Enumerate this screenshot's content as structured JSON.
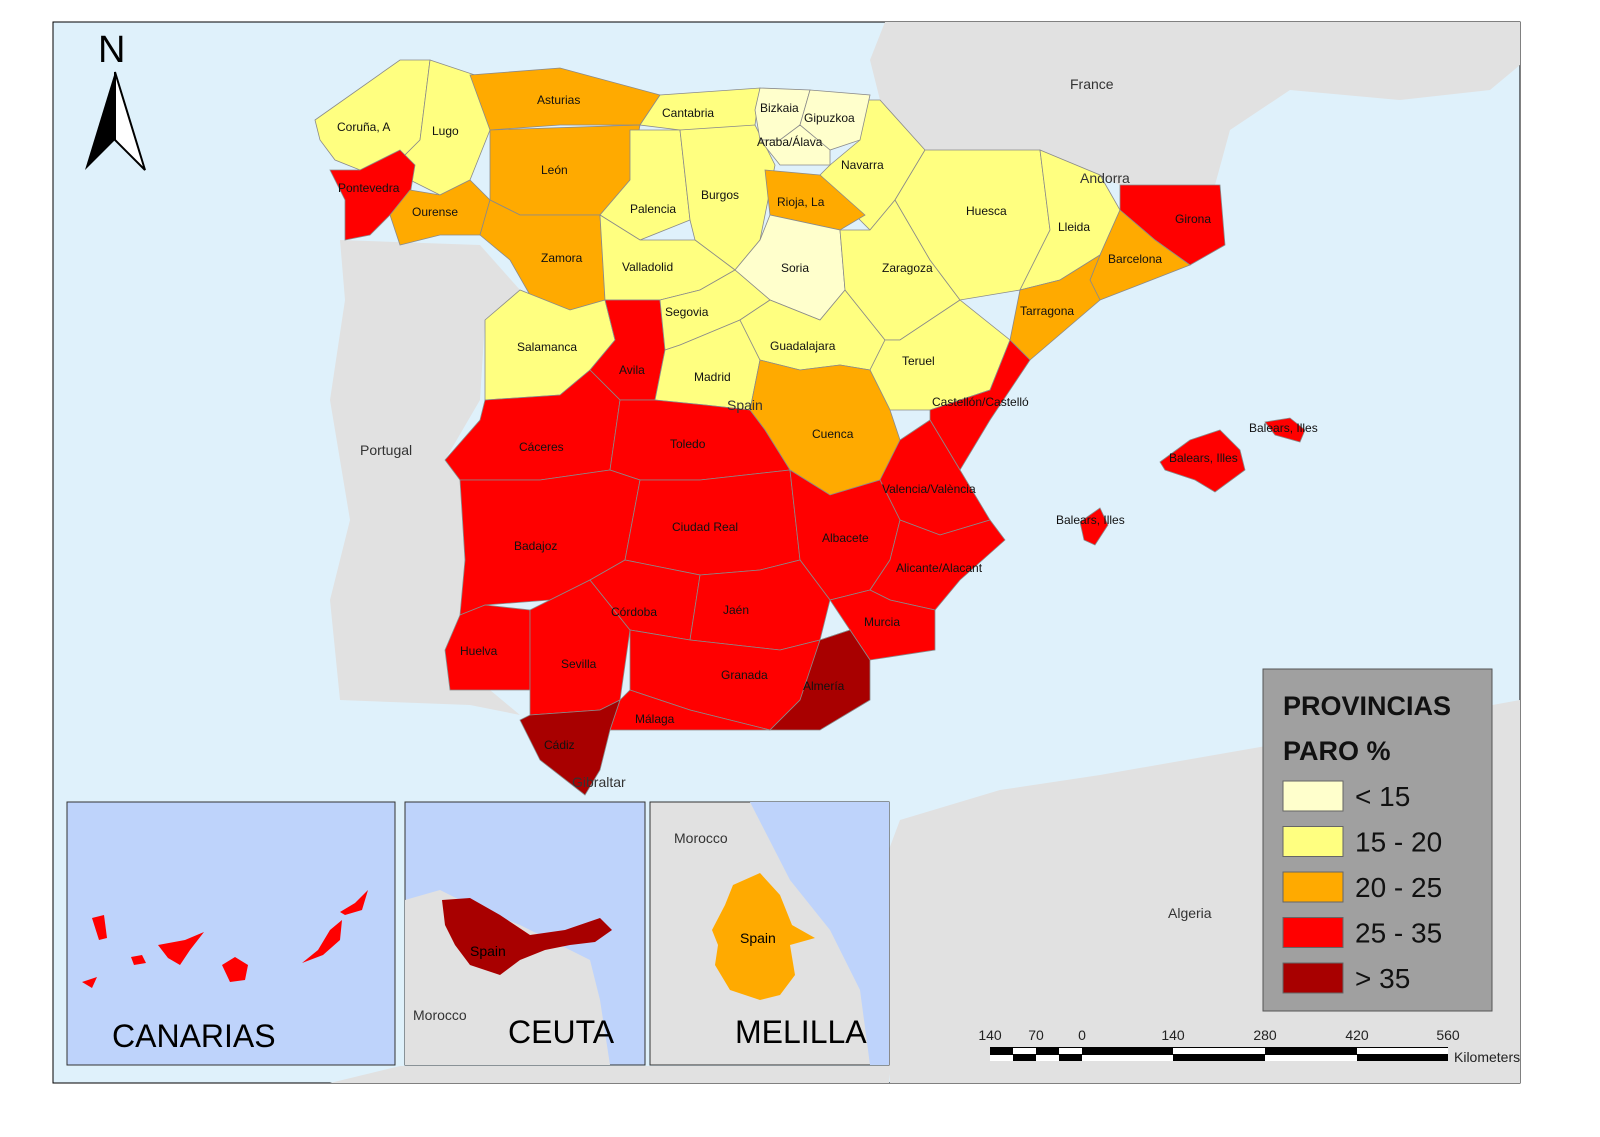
{
  "legend": {
    "title_line1": "PROVINCIAS",
    "title_line2": "PARO %",
    "classes": [
      {
        "label": "< 15",
        "color": "#ffffcc"
      },
      {
        "label": "15 - 20",
        "color": "#ffff80"
      },
      {
        "label": "20 - 25",
        "color": "#ffaa00"
      },
      {
        "label": "25 - 35",
        "color": "#ff0000"
      },
      {
        "label": "> 35",
        "color": "#a80000"
      }
    ]
  },
  "colors": {
    "sea": "#dff1fb",
    "other_land": "#e1e1e1",
    "inset_sea": "#bed3fb",
    "legend_bg": "#a0a0a0"
  },
  "north_label": "N",
  "countries": {
    "france": "France",
    "andorra": "Andorra",
    "portugal": "Portugal",
    "spain": "Spain",
    "gibraltar": "Gibraltar",
    "algeria": "Algeria"
  },
  "provinces": [
    {
      "name": "Coruña, A",
      "class": 1
    },
    {
      "name": "Lugo",
      "class": 1
    },
    {
      "name": "Pontevedra",
      "class": 3
    },
    {
      "name": "Ourense",
      "class": 2
    },
    {
      "name": "Asturias",
      "class": 2
    },
    {
      "name": "León",
      "class": 2
    },
    {
      "name": "Zamora",
      "class": 2
    },
    {
      "name": "Cantabria",
      "class": 1
    },
    {
      "name": "Palencia",
      "class": 1
    },
    {
      "name": "Burgos",
      "class": 1
    },
    {
      "name": "Bizkaia",
      "class": 0
    },
    {
      "name": "Navarra",
      "class": 1
    },
    {
      "name": "Rioja, La",
      "class": 2
    },
    {
      "name": "Soria",
      "class": 0
    },
    {
      "name": "Valladolid",
      "class": 1
    },
    {
      "name": "Salamanca",
      "class": 1
    },
    {
      "name": "Avila",
      "class": 3
    },
    {
      "name": "Segovia",
      "class": 1
    },
    {
      "name": "Madrid",
      "class": 1
    },
    {
      "name": "Guadalajara",
      "class": 1
    },
    {
      "name": "Zaragoza",
      "class": 1
    },
    {
      "name": "Huesca",
      "class": 1
    },
    {
      "name": "Lleida",
      "class": 1
    },
    {
      "name": "Girona",
      "class": 3
    },
    {
      "name": "Barcelona",
      "class": 2
    },
    {
      "name": "Tarragona",
      "class": 2
    },
    {
      "name": "Teruel",
      "class": 1
    },
    {
      "name": "Castellón/Castelló",
      "class": 3
    },
    {
      "name": "Cuenca",
      "class": 2
    },
    {
      "name": "Valencia/València",
      "class": 3
    },
    {
      "name": "Cáceres",
      "class": 3
    },
    {
      "name": "Toledo",
      "class": 3
    },
    {
      "name": "Badajoz",
      "class": 3
    },
    {
      "name": "Ciudad Real",
      "class": 3
    },
    {
      "name": "Albacete",
      "class": 3
    },
    {
      "name": "Alicante/Alacant",
      "class": 3
    },
    {
      "name": "Murcia",
      "class": 3
    },
    {
      "name": "Huelva",
      "class": 3
    },
    {
      "name": "Sevilla",
      "class": 3
    },
    {
      "name": "Córdoba",
      "class": 3
    },
    {
      "name": "Jaén",
      "class": 3
    },
    {
      "name": "Granada",
      "class": 3
    },
    {
      "name": "Almería",
      "class": 4
    },
    {
      "name": "Málaga",
      "class": 3
    },
    {
      "name": "Cádiz",
      "class": 4
    },
    {
      "name": "Gipuzkoa",
      "class": 0
    },
    {
      "name": "Araba/Álava",
      "class": 0
    },
    {
      "name": "Balears, Illes",
      "class": 3
    },
    {
      "name": "Balears, Illes",
      "class": 3
    },
    {
      "name": "Balears, Illes",
      "class": 3
    }
  ],
  "insets": {
    "canarias": {
      "title": "CANARIAS",
      "class": 3
    },
    "ceuta": {
      "title": "CEUTA",
      "class": 4,
      "spain": "Spain",
      "morocco": "Morocco"
    },
    "melilla": {
      "title": "MELILLA",
      "class": 2,
      "spain": "Spain",
      "morocco": "Morocco"
    }
  },
  "scalebar": {
    "ticks": [
      "140",
      "70",
      "0",
      "140",
      "280",
      "420",
      "560"
    ],
    "unit": "Kilometers"
  }
}
